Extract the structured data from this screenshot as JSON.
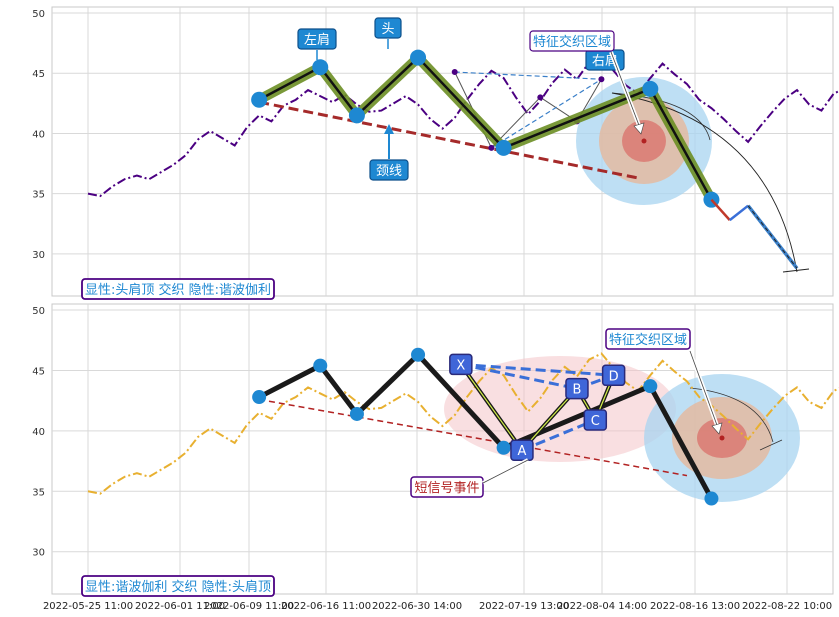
{
  "chart_data": [
    {
      "type": "line",
      "ylim": [
        26.5,
        50.5
      ],
      "yticks": [
        30,
        35,
        40,
        45,
        50
      ],
      "grid": true,
      "price_series": {
        "color": "#4b0082",
        "style": "dashdot",
        "values": [
          35.0,
          34.8,
          35.6,
          36.2,
          36.5,
          36.2,
          36.8,
          37.4,
          38.2,
          39.5,
          40.2,
          39.6,
          39.0,
          40.5,
          41.5,
          41.0,
          42.3,
          42.8,
          43.6,
          43.1,
          42.6,
          43.2,
          42.4,
          41.8,
          41.9,
          42.5,
          43.1,
          42.4,
          41.2,
          40.4,
          41.3,
          42.8,
          44.1,
          45.2,
          44.6,
          43.0,
          41.6,
          42.7,
          44.2,
          45.3,
          44.5,
          45.9,
          46.4,
          45.2,
          44.0,
          43.3,
          44.6,
          45.8,
          44.9,
          44.1,
          42.8,
          42.1,
          41.2,
          40.2,
          39.3,
          40.6,
          41.8,
          42.9,
          43.6,
          42.4,
          41.9,
          43.3,
          43.8,
          42.9,
          43.5,
          43.9,
          42.4,
          41.6
        ]
      },
      "pattern": {
        "points": [
          {
            "i": 14,
            "y": 42.8,
            "label": ""
          },
          {
            "i": 19,
            "y": 45.5,
            "label": "左肩"
          },
          {
            "i": 22,
            "y": 41.5,
            "label": ""
          },
          {
            "i": 27,
            "y": 46.3,
            "label": "头"
          },
          {
            "i": 34,
            "y": 38.8,
            "label": ""
          },
          {
            "i": 46,
            "y": 43.7,
            "label": "右肩"
          },
          {
            "i": 51,
            "y": 34.5,
            "label": ""
          }
        ],
        "neckline_label": "颈线",
        "feature_label": "特征交织区域"
      },
      "harmonic_overlay": [
        {
          "i": 30,
          "y": 45.1
        },
        {
          "i": 33,
          "y": 38.8
        },
        {
          "i": 37,
          "y": 43.0
        },
        {
          "i": 40,
          "y": 41.0
        },
        {
          "i": 42,
          "y": 44.5
        }
      ],
      "projection": [
        {
          "i": 51,
          "y": 34.5
        },
        {
          "i": 52.5,
          "y": 32.8
        },
        {
          "i": 54,
          "y": 34.0
        },
        {
          "i": 58,
          "y": 28.8
        }
      ],
      "caption": "显性:头肩顶 交织 隐性:谐波伽利"
    },
    {
      "type": "line",
      "ylim": [
        26.5,
        50.5
      ],
      "yticks": [
        30,
        35,
        40,
        45,
        50
      ],
      "grid": true,
      "price_series": {
        "color": "#e8b030",
        "style": "dashdot"
      },
      "pattern": {
        "points": [
          {
            "i": 14,
            "y": 42.8
          },
          {
            "i": 19,
            "y": 45.4
          },
          {
            "i": 22,
            "y": 41.4
          },
          {
            "i": 27,
            "y": 46.3
          },
          {
            "i": 34,
            "y": 38.6
          },
          {
            "i": 46,
            "y": 43.7
          },
          {
            "i": 51,
            "y": 34.4
          }
        ]
      },
      "harmonic_points": [
        {
          "label": "X",
          "i": 30.5,
          "y": 45.5
        },
        {
          "label": "A",
          "i": 35.5,
          "y": 38.4
        },
        {
          "label": "B",
          "i": 40.0,
          "y": 43.5
        },
        {
          "label": "C",
          "i": 41.5,
          "y": 40.9
        },
        {
          "label": "D",
          "i": 43.0,
          "y": 44.6
        }
      ],
      "event_label": "短信号事件",
      "feature_label": "特征交织区域",
      "caption": "显性:谐波伽利 交织 隐性:头肩顶"
    }
  ],
  "x_axis": {
    "tick_labels": [
      "2022-05-25 11:00",
      "2022-06-01 11:00",
      "2022-06-09 11:00",
      "2022-06-16 11:00",
      "2022-06-30 14:00",
      "2022-07-19 13:00",
      "2022-08-04 14:00",
      "2022-08-16 13:00",
      "2022-08-22 10:00"
    ]
  },
  "colors": {
    "hs_band": "#6b8e23",
    "hs_line": "#111111",
    "neckline": "#a52a2a",
    "marker": "#1e88d2",
    "label_box": "#1e88d2",
    "caption_border": "#4b0082",
    "caption_text": "#1e88d2",
    "harmonic_box": "#3f66d8",
    "harmonic_line": "#3a6fd8",
    "zone_outer": "#a8d4f0",
    "zone_mid": "#e6b89c",
    "zone_inner": "#d9706a",
    "zone_pink": "#f4c4c8"
  }
}
